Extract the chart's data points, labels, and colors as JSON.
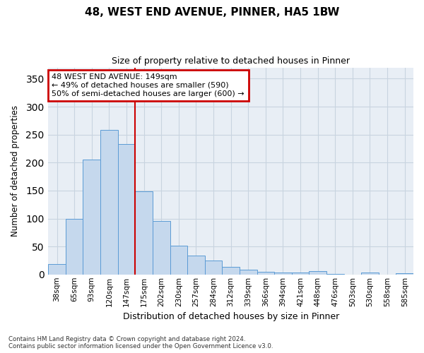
{
  "title1": "48, WEST END AVENUE, PINNER, HA5 1BW",
  "title2": "Size of property relative to detached houses in Pinner",
  "xlabel": "Distribution of detached houses by size in Pinner",
  "ylabel": "Number of detached properties",
  "categories": [
    "38sqm",
    "65sqm",
    "93sqm",
    "120sqm",
    "147sqm",
    "175sqm",
    "202sqm",
    "230sqm",
    "257sqm",
    "284sqm",
    "312sqm",
    "339sqm",
    "366sqm",
    "394sqm",
    "421sqm",
    "448sqm",
    "476sqm",
    "503sqm",
    "530sqm",
    "558sqm",
    "585sqm"
  ],
  "values": [
    18,
    100,
    205,
    258,
    233,
    148,
    95,
    51,
    34,
    25,
    13,
    9,
    5,
    4,
    4,
    6,
    1,
    0,
    3,
    0,
    2
  ],
  "bar_color": "#c5d8ed",
  "bar_edge_color": "#5b9bd5",
  "grid_color": "#c8d4e0",
  "background_color": "#e8eef5",
  "annotation_text": "48 WEST END AVENUE: 149sqm\n← 49% of detached houses are smaller (590)\n50% of semi-detached houses are larger (600) →",
  "annotation_box_color": "white",
  "annotation_box_edge": "#cc0000",
  "property_line_x": 4.5,
  "ylim": [
    0,
    370
  ],
  "yticks": [
    0,
    50,
    100,
    150,
    200,
    250,
    300,
    350
  ],
  "footer1": "Contains HM Land Registry data © Crown copyright and database right 2024.",
  "footer2": "Contains public sector information licensed under the Open Government Licence v3.0."
}
